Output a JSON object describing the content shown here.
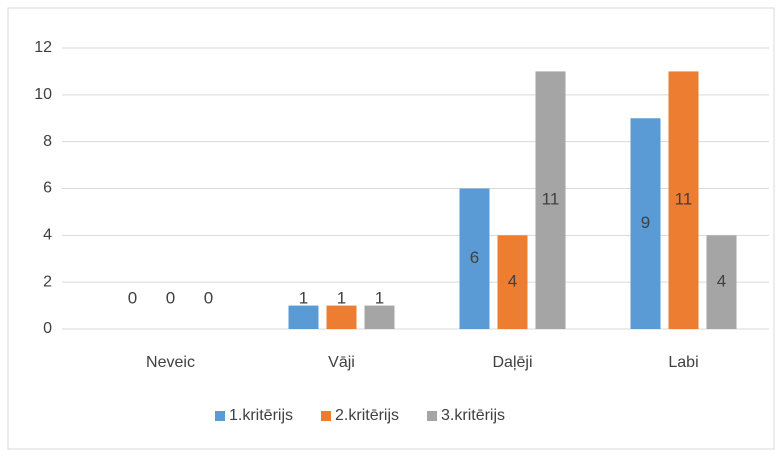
{
  "chart_data": {
    "type": "bar",
    "categories": [
      "Neveic",
      "Vāji",
      "Daļēji",
      "Labi"
    ],
    "series": [
      {
        "name": "1.kritērijs",
        "color": "#5b9bd5",
        "values": [
          0,
          1,
          6,
          9
        ]
      },
      {
        "name": "2.kritērijs",
        "color": "#ed7d31",
        "values": [
          0,
          1,
          4,
          11
        ]
      },
      {
        "name": "3.kritērijs",
        "color": "#a5a5a5",
        "values": [
          0,
          1,
          11,
          4
        ]
      }
    ],
    "ylim": [
      0,
      12
    ],
    "yticks": [
      0,
      2,
      4,
      6,
      8,
      10,
      12
    ],
    "grid": true,
    "legend": "bottom"
  }
}
